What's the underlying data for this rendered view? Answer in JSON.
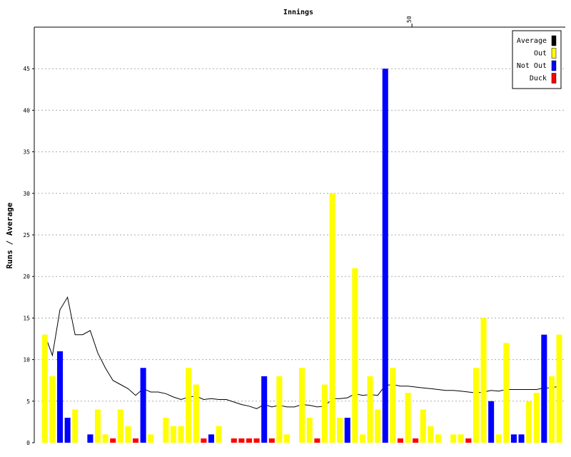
{
  "chart_data": {
    "type": "bar",
    "title": "Innings",
    "y_label": "Runs / Average",
    "x": [
      1,
      2,
      3,
      4,
      5,
      6,
      7,
      8,
      9,
      10,
      11,
      12,
      13,
      14,
      15,
      16,
      17,
      18,
      19,
      20,
      21,
      22,
      23,
      24,
      25,
      26,
      27,
      28,
      29,
      30,
      31,
      32,
      33,
      34,
      35,
      36,
      37,
      38,
      39,
      40,
      41,
      42,
      43,
      44,
      45,
      46,
      47,
      48,
      49,
      50,
      51,
      52,
      53,
      54,
      55,
      56,
      57,
      58,
      59,
      60,
      61,
      62,
      63,
      64,
      65,
      66,
      67,
      68,
      69
    ],
    "xlim": [
      -0.4,
      69.8
    ],
    "xticks": [
      50
    ],
    "ylim": [
      0,
      50
    ],
    "yticks": [
      0,
      5,
      10,
      15,
      20,
      25,
      30,
      35,
      40,
      45
    ],
    "grid": true,
    "legend": "upper right",
    "series": [
      {
        "name": "Average",
        "color": "#000000",
        "kind": "line",
        "values": [
          13,
          10.5,
          16,
          17.5,
          13,
          13,
          13.5,
          10.8,
          9,
          7.5,
          7,
          6.5,
          5.7,
          6.5,
          6.1,
          6.1,
          5.9,
          5.5,
          5.2,
          5.5,
          5.6,
          5.2,
          5.3,
          5.2,
          5.2,
          4.9,
          4.6,
          4.4,
          4.1,
          4.6,
          4.3,
          4.5,
          4.3,
          4.3,
          4.6,
          4.5,
          4.3,
          4.4,
          5.3,
          5.3,
          5.4,
          5.9,
          5.7,
          5.8,
          5.7,
          6.9,
          7,
          6.8,
          6.8,
          6.7,
          6.6,
          6.5,
          6.4,
          6.3,
          6.3,
          6.2,
          6.1,
          6,
          6.1,
          6.3,
          6.2,
          6.4,
          6.4,
          6.4,
          6.4,
          6.4,
          6.6,
          6.6,
          6.8
        ]
      },
      {
        "name": "Out",
        "color": "#ffff00",
        "kind": "bar",
        "values": [
          13,
          8,
          null,
          null,
          4,
          null,
          null,
          4,
          1,
          null,
          4,
          2,
          null,
          null,
          1,
          null,
          3,
          2,
          2,
          9,
          7,
          null,
          null,
          2,
          null,
          null,
          null,
          null,
          null,
          null,
          null,
          8,
          1,
          null,
          9,
          3,
          null,
          7,
          30,
          3,
          null,
          21,
          1,
          8,
          4,
          null,
          9,
          null,
          6,
          null,
          4,
          2,
          1,
          null,
          1,
          1,
          null,
          9,
          15,
          null,
          1,
          12,
          null,
          null,
          5,
          6,
          null,
          8,
          13
        ]
      },
      {
        "name": "Not Out",
        "color": "#0000ff",
        "kind": "bar",
        "values": [
          null,
          null,
          11,
          3,
          null,
          null,
          1,
          null,
          null,
          null,
          null,
          null,
          null,
          9,
          null,
          null,
          null,
          null,
          null,
          null,
          null,
          null,
          1,
          null,
          null,
          null,
          null,
          null,
          null,
          8,
          null,
          null,
          null,
          null,
          null,
          null,
          null,
          null,
          null,
          null,
          3,
          null,
          null,
          null,
          null,
          45,
          null,
          null,
          null,
          null,
          null,
          null,
          null,
          null,
          null,
          null,
          null,
          null,
          null,
          5,
          null,
          null,
          1,
          1,
          null,
          null,
          13,
          null,
          null
        ]
      },
      {
        "name": "Duck",
        "color": "#ff0000",
        "kind": "bar",
        "values": [
          null,
          null,
          null,
          null,
          null,
          null,
          null,
          null,
          null,
          0,
          null,
          null,
          0,
          null,
          null,
          null,
          null,
          null,
          null,
          null,
          null,
          0,
          null,
          null,
          null,
          0,
          0,
          0,
          0,
          null,
          0,
          null,
          null,
          null,
          null,
          null,
          0,
          null,
          null,
          null,
          null,
          null,
          null,
          null,
          null,
          null,
          null,
          0,
          null,
          0,
          null,
          null,
          null,
          null,
          null,
          null,
          0,
          null,
          null,
          null,
          null,
          null,
          null,
          null,
          null,
          null,
          null,
          null,
          null
        ]
      }
    ]
  }
}
